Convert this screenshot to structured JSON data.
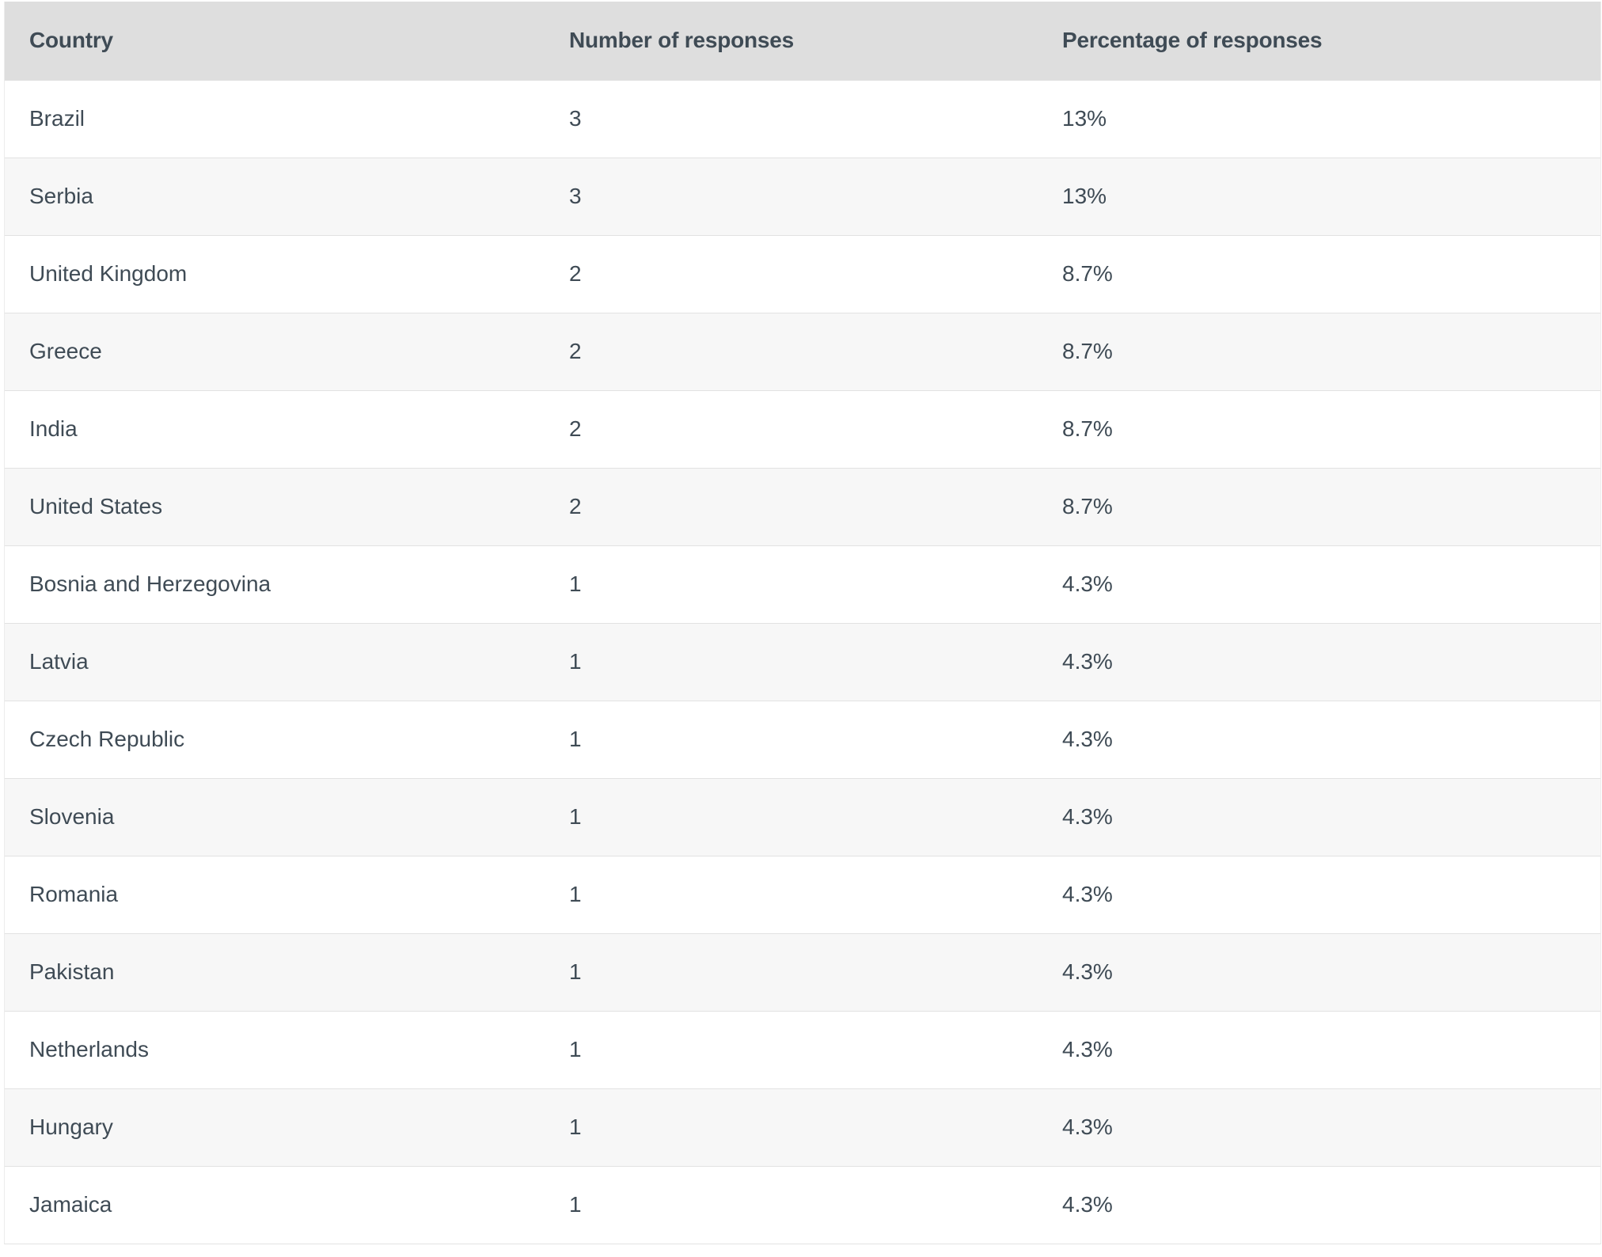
{
  "table": {
    "headers": [
      "Country",
      "Number of responses",
      "Percentage of responses"
    ],
    "rows": [
      [
        "Brazil",
        "3",
        "13%"
      ],
      [
        "Serbia",
        "3",
        "13%"
      ],
      [
        "United Kingdom",
        "2",
        "8.7%"
      ],
      [
        "Greece",
        "2",
        "8.7%"
      ],
      [
        "India",
        "2",
        "8.7%"
      ],
      [
        "United States",
        "2",
        "8.7%"
      ],
      [
        "Bosnia and Herzegovina",
        "1",
        "4.3%"
      ],
      [
        "Latvia",
        "1",
        "4.3%"
      ],
      [
        "Czech Republic",
        "1",
        "4.3%"
      ],
      [
        "Slovenia",
        "1",
        "4.3%"
      ],
      [
        "Romania",
        "1",
        "4.3%"
      ],
      [
        "Pakistan",
        "1",
        "4.3%"
      ],
      [
        "Netherlands",
        "1",
        "4.3%"
      ],
      [
        "Hungary",
        "1",
        "4.3%"
      ],
      [
        "Jamaica",
        "1",
        "4.3%"
      ]
    ]
  },
  "colors": {
    "header_background": "#dedede",
    "row_alt_background": "#f7f7f7",
    "text": "#3f4b55"
  }
}
